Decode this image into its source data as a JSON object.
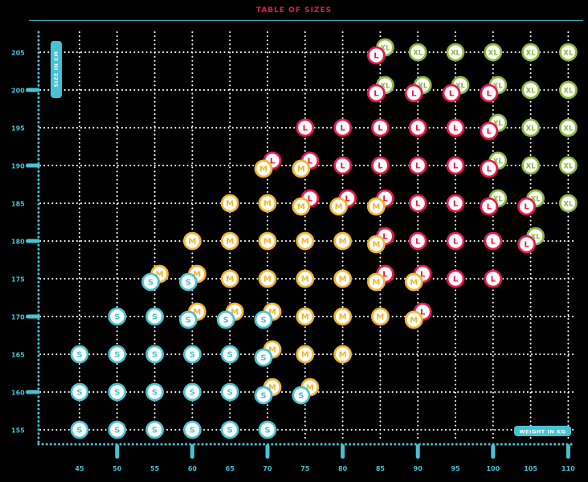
{
  "page": {
    "title": "TABLE OF SIZES"
  },
  "colors": {
    "title": "#e8194f",
    "axis": "#48c2d2",
    "grid": "#ffffff",
    "S": "#48c2d2",
    "M": "#f1b52b",
    "L": "#e8194f",
    "XL": "#8cb83c"
  },
  "chart_data": {
    "type": "scatter",
    "title": "TABLE OF SIZES",
    "xlabel": "WEIGHT IN KG",
    "ylabel": "SIZE IN CM",
    "x_ticks": [
      45,
      50,
      55,
      60,
      65,
      70,
      75,
      80,
      85,
      90,
      95,
      100,
      105,
      110
    ],
    "y_ticks": [
      155,
      160,
      165,
      170,
      175,
      180,
      185,
      190,
      195,
      200,
      205
    ],
    "xlim": [
      42,
      111
    ],
    "ylim": [
      152.5,
      207
    ],
    "grid": true,
    "categories": [
      "S",
      "M",
      "L",
      "XL"
    ],
    "rows": [
      {
        "y": 155,
        "cells": [
          [
            45,
            "S"
          ],
          [
            50,
            "S"
          ],
          [
            55,
            "S"
          ],
          [
            60,
            "S"
          ],
          [
            65,
            "S"
          ],
          [
            70,
            "S"
          ]
        ]
      },
      {
        "y": 160,
        "cells": [
          [
            45,
            "S"
          ],
          [
            50,
            "S"
          ],
          [
            55,
            "S"
          ],
          [
            60,
            "S"
          ],
          [
            65,
            "S"
          ],
          [
            70,
            "S",
            "M"
          ],
          [
            75,
            "S",
            "M"
          ]
        ]
      },
      {
        "y": 165,
        "cells": [
          [
            45,
            "S"
          ],
          [
            50,
            "S"
          ],
          [
            55,
            "S"
          ],
          [
            60,
            "S"
          ],
          [
            65,
            "S"
          ],
          [
            70,
            "S",
            "M"
          ],
          [
            75,
            "M"
          ],
          [
            80,
            "M"
          ]
        ]
      },
      {
        "y": 170,
        "cells": [
          [
            50,
            "S"
          ],
          [
            55,
            "S"
          ],
          [
            60,
            "S",
            "M"
          ],
          [
            65,
            "S",
            "M"
          ],
          [
            70,
            "S",
            "M"
          ],
          [
            75,
            "M"
          ],
          [
            80,
            "M"
          ],
          [
            85,
            "M"
          ],
          [
            90,
            "M",
            "L"
          ]
        ]
      },
      {
        "y": 175,
        "cells": [
          [
            55,
            "S",
            "M"
          ],
          [
            60,
            "S",
            "M"
          ],
          [
            65,
            "M"
          ],
          [
            70,
            "M"
          ],
          [
            75,
            "M"
          ],
          [
            80,
            "M"
          ],
          [
            85,
            "M",
            "L"
          ],
          [
            90,
            "M",
            "L"
          ],
          [
            95,
            "L"
          ],
          [
            100,
            "L"
          ]
        ]
      },
      {
        "y": 180,
        "cells": [
          [
            60,
            "M"
          ],
          [
            65,
            "M"
          ],
          [
            70,
            "M"
          ],
          [
            75,
            "M"
          ],
          [
            80,
            "M"
          ],
          [
            85,
            "M",
            "L"
          ],
          [
            90,
            "L"
          ],
          [
            95,
            "L"
          ],
          [
            100,
            "L"
          ],
          [
            105,
            "L",
            "XL"
          ]
        ]
      },
      {
        "y": 185,
        "cells": [
          [
            65,
            "M"
          ],
          [
            70,
            "M"
          ],
          [
            75,
            "M",
            "L"
          ],
          [
            80,
            "M",
            "L"
          ],
          [
            85,
            "M",
            "L"
          ],
          [
            90,
            "L"
          ],
          [
            95,
            "L"
          ],
          [
            100,
            "L",
            "XL"
          ],
          [
            105,
            "L",
            "XL"
          ],
          [
            110,
            "XL"
          ]
        ]
      },
      {
        "y": 190,
        "cells": [
          [
            70,
            "M",
            "L"
          ],
          [
            75,
            "M",
            "L"
          ],
          [
            80,
            "L"
          ],
          [
            85,
            "L"
          ],
          [
            90,
            "L"
          ],
          [
            95,
            "L"
          ],
          [
            100,
            "L",
            "XL"
          ],
          [
            105,
            "XL"
          ],
          [
            110,
            "XL"
          ]
        ]
      },
      {
        "y": 195,
        "cells": [
          [
            75,
            "L"
          ],
          [
            80,
            "L"
          ],
          [
            85,
            "L"
          ],
          [
            90,
            "L"
          ],
          [
            95,
            "L"
          ],
          [
            100,
            "L",
            "XL"
          ],
          [
            105,
            "XL"
          ],
          [
            110,
            "XL"
          ]
        ]
      },
      {
        "y": 200,
        "cells": [
          [
            85,
            "L",
            "XL"
          ],
          [
            90,
            "L",
            "XL"
          ],
          [
            95,
            "L",
            "XL"
          ],
          [
            100,
            "L",
            "XL"
          ],
          [
            105,
            "XL"
          ],
          [
            110,
            "XL"
          ]
        ]
      },
      {
        "y": 205,
        "cells": [
          [
            85,
            "L",
            "XL"
          ],
          [
            90,
            "XL"
          ],
          [
            95,
            "XL"
          ],
          [
            100,
            "XL"
          ],
          [
            105,
            "XL"
          ],
          [
            110,
            "XL"
          ]
        ]
      }
    ]
  }
}
